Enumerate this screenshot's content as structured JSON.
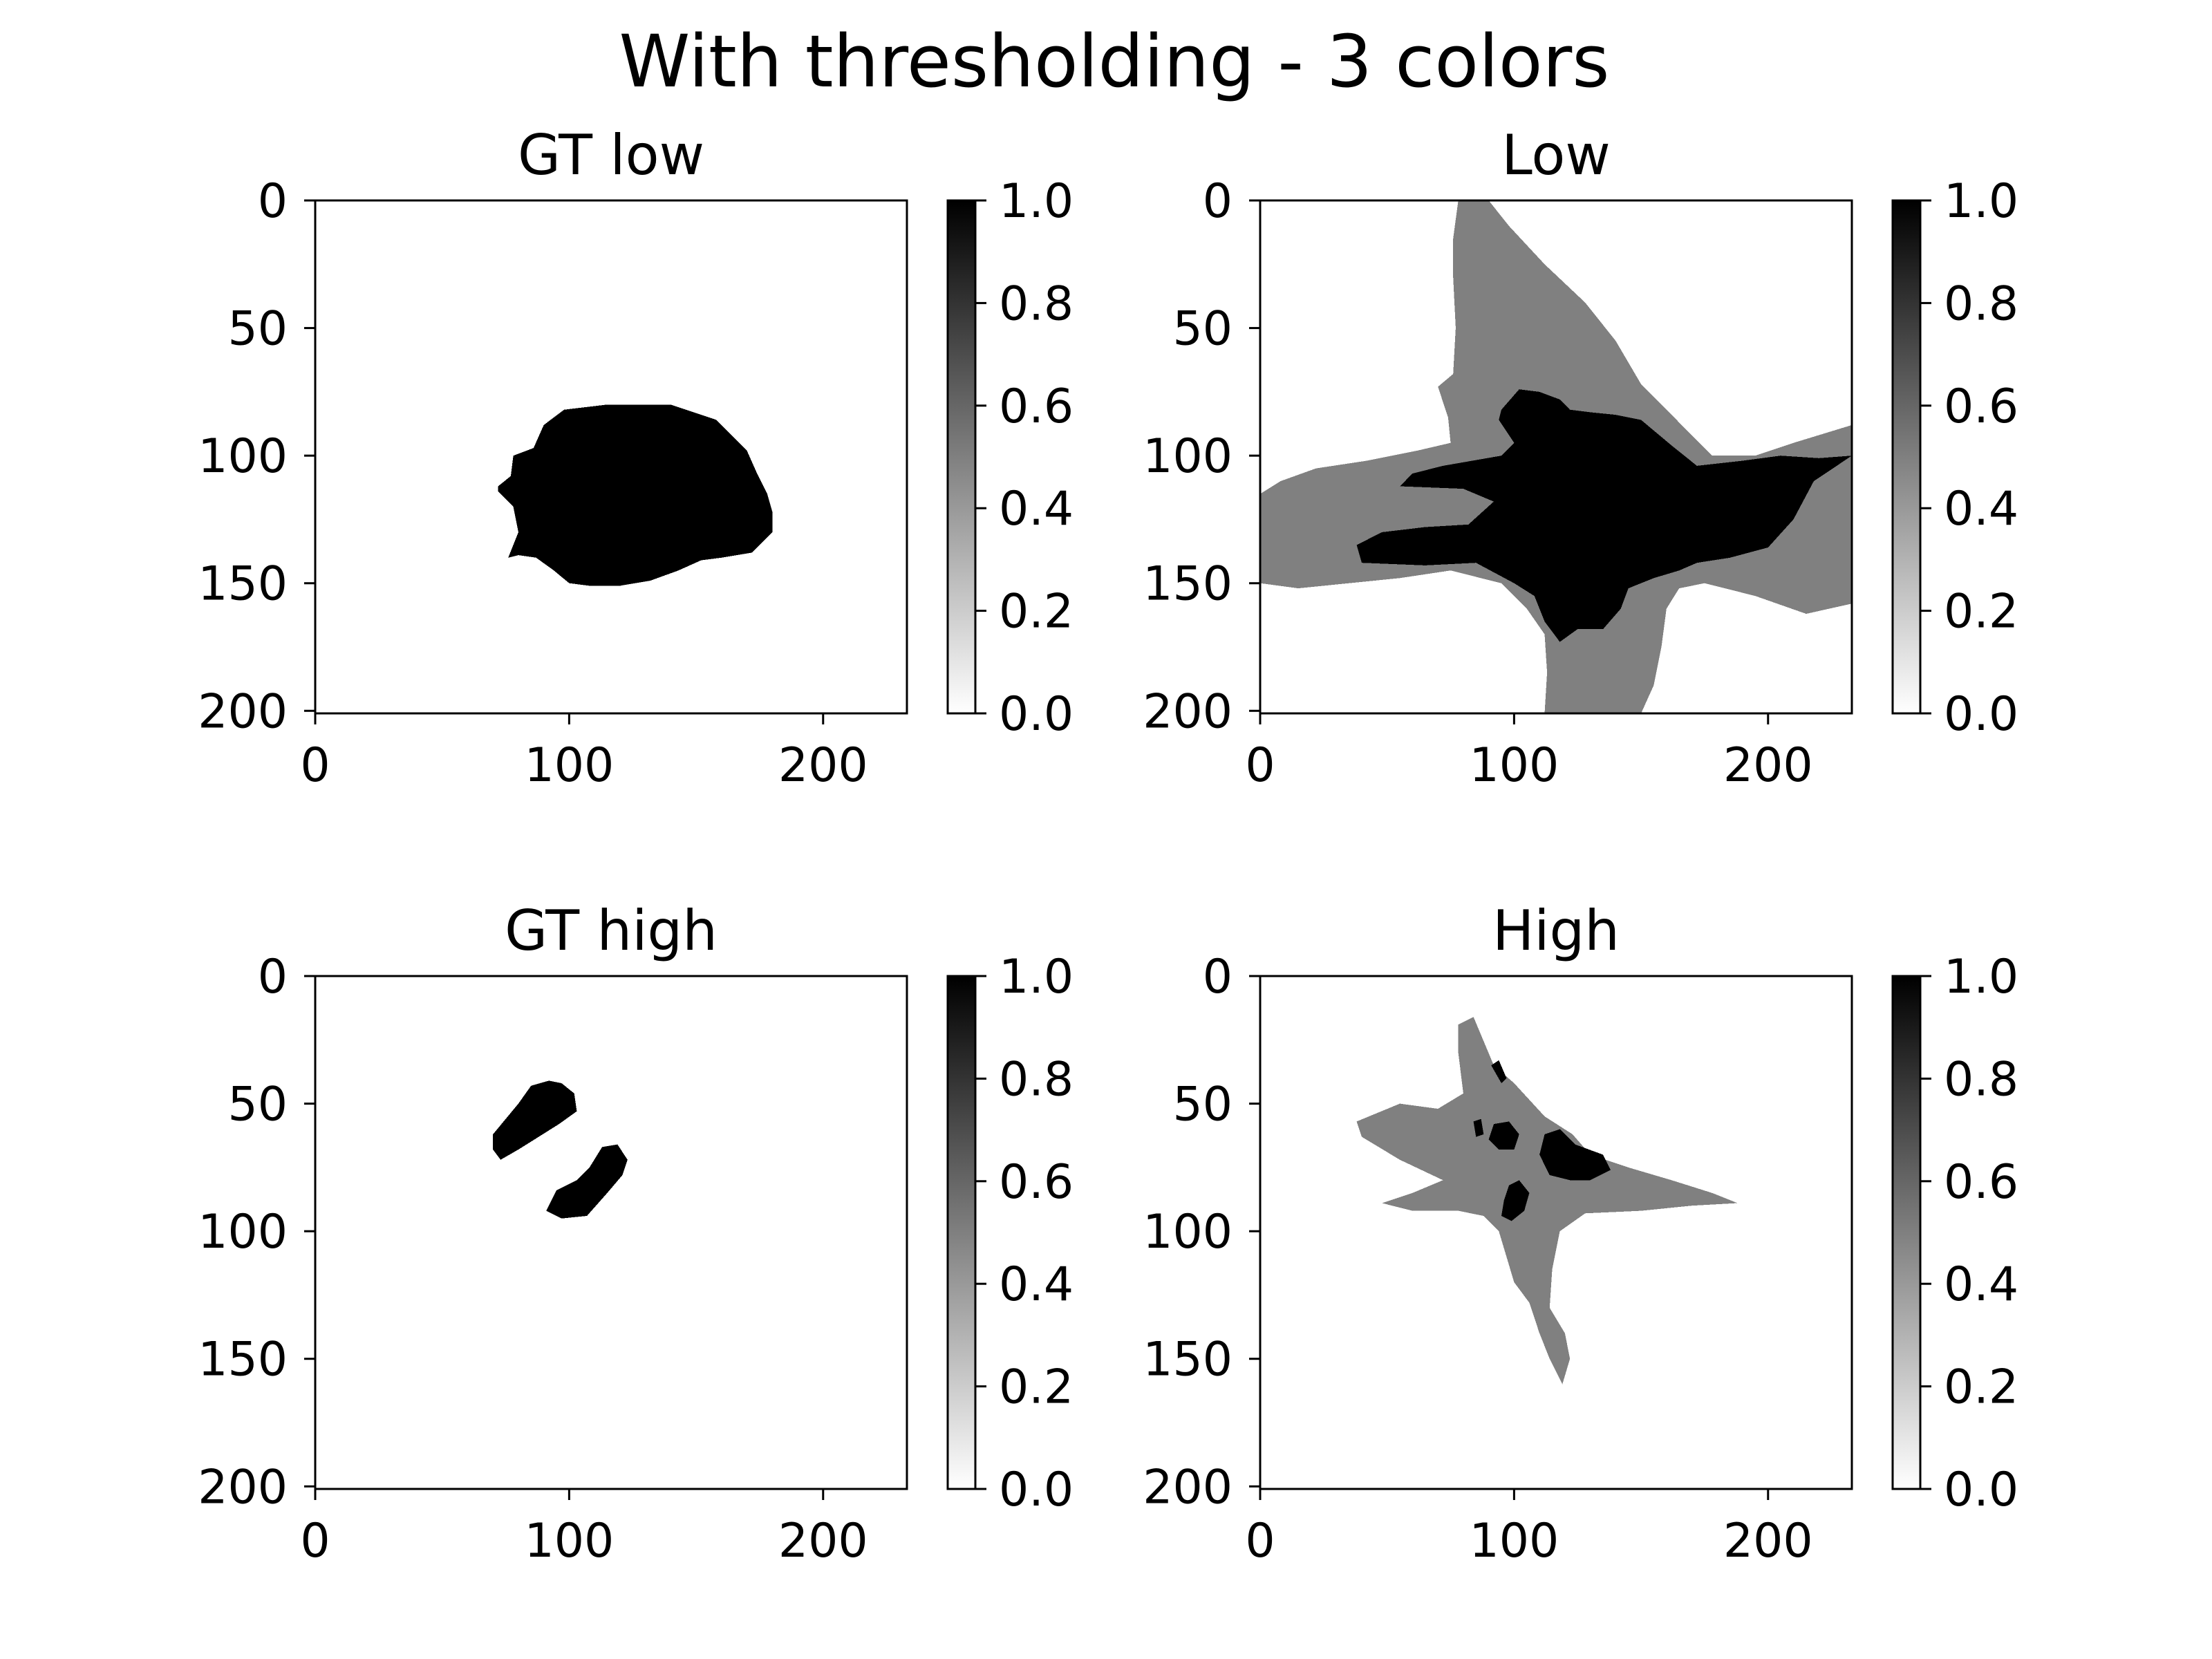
{
  "figure": {
    "title": "With thresholding - 3 colors"
  },
  "colors": {
    "foreground": "#000000",
    "mid_gray": "#999999",
    "background": "#ffffff"
  },
  "chart_data": [
    {
      "type": "heatmap",
      "title": "GT low",
      "xlim": [
        0,
        233
      ],
      "ylim": [
        201,
        0
      ],
      "xticks": [
        "0",
        "100",
        "200"
      ],
      "yticks": [
        "0",
        "50",
        "100",
        "150",
        "200"
      ],
      "colorbar": {
        "range": [
          0.0,
          1.0
        ],
        "ticks": [
          "0.0",
          "0.2",
          "0.4",
          "0.6",
          "0.8",
          "1.0"
        ],
        "colormap": "gray_r"
      },
      "regions": [
        {
          "value": 1.0,
          "polygon": [
            [
              72,
              112
            ],
            [
              77,
              108
            ],
            [
              78,
              100
            ],
            [
              86,
              97
            ],
            [
              90,
              88
            ],
            [
              98,
              82
            ],
            [
              115,
              80
            ],
            [
              140,
              80
            ],
            [
              152,
              84
            ],
            [
              158,
              86
            ],
            [
              170,
              98
            ],
            [
              174,
              107
            ],
            [
              178,
              115
            ],
            [
              180,
              122
            ],
            [
              180,
              130
            ],
            [
              172,
              138
            ],
            [
              160,
              140
            ],
            [
              152,
              141
            ],
            [
              143,
              145
            ],
            [
              132,
              149
            ],
            [
              120,
              151
            ],
            [
              108,
              151
            ],
            [
              100,
              150
            ],
            [
              94,
              145
            ],
            [
              87,
              140
            ],
            [
              80,
              139
            ],
            [
              76,
              140
            ],
            [
              80,
              130
            ],
            [
              78,
              120
            ],
            [
              72,
              114
            ]
          ]
        }
      ]
    },
    {
      "type": "heatmap",
      "title": "Low",
      "xlim": [
        0,
        233
      ],
      "ylim": [
        201,
        0
      ],
      "xticks": [
        "0",
        "100",
        "200"
      ],
      "yticks": [
        "0",
        "50",
        "100",
        "150",
        "200"
      ],
      "colorbar": {
        "range": [
          0.0,
          1.0
        ],
        "ticks": [
          "0.0",
          "0.2",
          "0.4",
          "0.6",
          "0.8",
          "1.0"
        ],
        "colormap": "gray_r"
      },
      "regions": [
        {
          "value": 0.5,
          "polygon": [
            [
              78,
              0
            ],
            [
              90,
              0
            ],
            [
              98,
              10
            ],
            [
              112,
              25
            ],
            [
              128,
              40
            ],
            [
              140,
              55
            ],
            [
              150,
              72
            ],
            [
              160,
              82
            ],
            [
              178,
              100
            ],
            [
              195,
              100
            ],
            [
              210,
              95
            ],
            [
              233,
              88
            ],
            [
              233,
              158
            ],
            [
              215,
              162
            ],
            [
              195,
              155
            ],
            [
              175,
              150
            ],
            [
              165,
              152
            ],
            [
              160,
              160
            ],
            [
              158,
              175
            ],
            [
              155,
              190
            ],
            [
              150,
              201
            ],
            [
              112,
              201
            ],
            [
              113,
              185
            ],
            [
              112,
              170
            ],
            [
              105,
              160
            ],
            [
              95,
              150
            ],
            [
              75,
              145
            ],
            [
              55,
              148
            ],
            [
              35,
              150
            ],
            [
              15,
              152
            ],
            [
              0,
              150
            ],
            [
              0,
              115
            ],
            [
              8,
              110
            ],
            [
              22,
              105
            ],
            [
              42,
              102
            ],
            [
              62,
              98
            ],
            [
              75,
              95
            ],
            [
              74,
              85
            ],
            [
              70,
              73
            ],
            [
              76,
              68
            ],
            [
              77,
              50
            ],
            [
              76,
              30
            ],
            [
              76,
              15
            ],
            [
              78,
              0
            ]
          ]
        },
        {
          "value": 1.0,
          "polygon": [
            [
              95,
              82
            ],
            [
              102,
              74
            ],
            [
              110,
              75
            ],
            [
              118,
              78
            ],
            [
              122,
              82
            ],
            [
              130,
              83
            ],
            [
              140,
              84
            ],
            [
              150,
              86
            ],
            [
              162,
              96
            ],
            [
              172,
              104
            ],
            [
              190,
              102
            ],
            [
              205,
              100
            ],
            [
              220,
              101
            ],
            [
              233,
              100
            ],
            [
              218,
              110
            ],
            [
              210,
              125
            ],
            [
              200,
              136
            ],
            [
              185,
              140
            ],
            [
              172,
              142
            ],
            [
              165,
              145
            ],
            [
              155,
              148
            ],
            [
              145,
              152
            ],
            [
              142,
              160
            ],
            [
              135,
              168
            ],
            [
              125,
              168
            ],
            [
              118,
              173
            ],
            [
              112,
              165
            ],
            [
              108,
              155
            ],
            [
              100,
              150
            ],
            [
              85,
              142
            ],
            [
              65,
              143
            ],
            [
              40,
              142
            ],
            [
              38,
              135
            ],
            [
              48,
              130
            ],
            [
              65,
              128
            ],
            [
              82,
              127
            ],
            [
              92,
              118
            ],
            [
              80,
              113
            ],
            [
              55,
              112
            ],
            [
              60,
              107
            ],
            [
              72,
              104
            ],
            [
              95,
              100
            ],
            [
              100,
              95
            ],
            [
              94,
              86
            ]
          ]
        }
      ]
    },
    {
      "type": "heatmap",
      "title": "GT high",
      "xlim": [
        0,
        233
      ],
      "ylim": [
        201,
        0
      ],
      "xticks": [
        "0",
        "100",
        "200"
      ],
      "yticks": [
        "0",
        "50",
        "100",
        "150",
        "200"
      ],
      "colorbar": {
        "range": [
          0.0,
          1.0
        ],
        "ticks": [
          "0.0",
          "0.2",
          "0.4",
          "0.6",
          "0.8",
          "1.0"
        ],
        "colormap": "gray_r"
      },
      "regions": [
        {
          "value": 1.0,
          "polygon": [
            [
              70,
              62
            ],
            [
              80,
              50
            ],
            [
              85,
              43
            ],
            [
              92,
              41
            ],
            [
              97,
              42
            ],
            [
              102,
              46
            ],
            [
              103,
              53
            ],
            [
              96,
              58
            ],
            [
              88,
              63
            ],
            [
              80,
              68
            ],
            [
              73,
              72
            ],
            [
              70,
              68
            ]
          ]
        },
        {
          "value": 1.0,
          "polygon": [
            [
              113,
              67
            ],
            [
              119,
              66
            ],
            [
              123,
              72
            ],
            [
              121,
              78
            ],
            [
              115,
              85
            ],
            [
              107,
              94
            ],
            [
              97,
              95
            ],
            [
              91,
              92
            ],
            [
              95,
              84
            ],
            [
              103,
              80
            ],
            [
              108,
              75
            ]
          ]
        }
      ]
    },
    {
      "type": "heatmap",
      "title": "High",
      "xlim": [
        0,
        233
      ],
      "ylim": [
        201,
        0
      ],
      "xticks": [
        "0",
        "100",
        "200"
      ],
      "yticks": [
        "0",
        "50",
        "100",
        "150",
        "200"
      ],
      "colorbar": {
        "range": [
          0.0,
          1.0
        ],
        "ticks": [
          "0.0",
          "0.2",
          "0.4",
          "0.6",
          "0.8",
          "1.0"
        ],
        "colormap": "gray_r"
      },
      "regions": [
        {
          "value": 0.5,
          "polygon": [
            [
              78,
              19
            ],
            [
              84,
              16
            ],
            [
              92,
              35
            ],
            [
              100,
              42
            ],
            [
              112,
              55
            ],
            [
              123,
              62
            ],
            [
              130,
              70
            ],
            [
              145,
              75
            ],
            [
              162,
              80
            ],
            [
              178,
              85
            ],
            [
              188,
              89
            ],
            [
              170,
              90
            ],
            [
              150,
              92
            ],
            [
              128,
              93
            ],
            [
              118,
              100
            ],
            [
              115,
              115
            ],
            [
              114,
              130
            ],
            [
              120,
              140
            ],
            [
              122,
              150
            ],
            [
              119,
              160
            ],
            [
              114,
              150
            ],
            [
              110,
              140
            ],
            [
              106,
              128
            ],
            [
              100,
              120
            ],
            [
              97,
              110
            ],
            [
              94,
              100
            ],
            [
              88,
              94
            ],
            [
              78,
              92
            ],
            [
              60,
              92
            ],
            [
              48,
              89
            ],
            [
              60,
              85
            ],
            [
              72,
              80
            ],
            [
              55,
              72
            ],
            [
              40,
              63
            ],
            [
              38,
              57
            ],
            [
              55,
              50
            ],
            [
              70,
              52
            ],
            [
              80,
              46
            ],
            [
              78,
              30
            ]
          ]
        },
        {
          "value": 1.0,
          "polygon": [
            [
              92,
              58
            ],
            [
              98,
              57
            ],
            [
              102,
              62
            ],
            [
              100,
              68
            ],
            [
              94,
              68
            ],
            [
              90,
              64
            ]
          ]
        },
        {
          "value": 1.0,
          "polygon": [
            [
              112,
              62
            ],
            [
              118,
              60
            ],
            [
              124,
              66
            ],
            [
              135,
              70
            ],
            [
              138,
              76
            ],
            [
              130,
              80
            ],
            [
              122,
              80
            ],
            [
              114,
              78
            ],
            [
              110,
              70
            ]
          ]
        },
        {
          "value": 1.0,
          "polygon": [
            [
              98,
              82
            ],
            [
              102,
              80
            ],
            [
              106,
              85
            ],
            [
              104,
              92
            ],
            [
              99,
              96
            ],
            [
              95,
              94
            ],
            [
              96,
              88
            ]
          ]
        },
        {
          "value": 1.0,
          "polygon": [
            [
              91,
              35
            ],
            [
              94,
              33
            ],
            [
              97,
              40
            ],
            [
              95,
              42
            ]
          ]
        },
        {
          "value": 1.0,
          "polygon": [
            [
              84,
              57
            ],
            [
              87,
              56
            ],
            [
              88,
              62
            ],
            [
              85,
              63
            ]
          ]
        }
      ]
    }
  ]
}
